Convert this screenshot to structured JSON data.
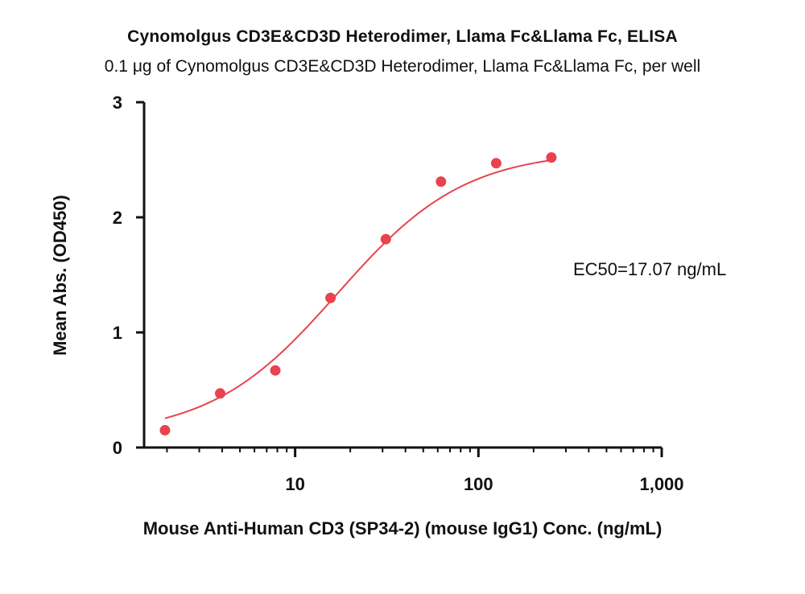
{
  "chart_data": {
    "type": "scatter",
    "title": "Cynomolgus CD3E&CD3D Heterodimer, Llama Fc&Llama Fc, ELISA",
    "subtitle": "0.1 μg of Cynomolgus CD3E&CD3D Heterodimer, Llama Fc&Llama Fc, per well",
    "xlabel": "Mouse Anti-Human CD3 (SP34-2) (mouse IgG1) Conc. (ng/mL)",
    "ylabel": "Mean Abs. (OD450)",
    "xscale": "log",
    "xlim": [
      1.5,
      1000
    ],
    "ylim": [
      0,
      3
    ],
    "x_ticks": [
      {
        "value": 10,
        "label": "10"
      },
      {
        "value": 100,
        "label": "100"
      },
      {
        "value": 1000,
        "label": "1,000"
      }
    ],
    "y_ticks": [
      {
        "value": 0,
        "label": "0"
      },
      {
        "value": 1,
        "label": "1"
      },
      {
        "value": 2,
        "label": "2"
      },
      {
        "value": 3,
        "label": "3"
      }
    ],
    "grid": false,
    "series": [
      {
        "color": "#e8434f",
        "points": [
          {
            "x": 1.95,
            "y": 0.15
          },
          {
            "x": 3.9,
            "y": 0.47
          },
          {
            "x": 7.8,
            "y": 0.67
          },
          {
            "x": 15.6,
            "y": 1.3
          },
          {
            "x": 31.25,
            "y": 1.81
          },
          {
            "x": 62.5,
            "y": 2.31
          },
          {
            "x": 125,
            "y": 2.47
          },
          {
            "x": 250,
            "y": 2.52
          }
        ],
        "fit": {
          "model": "4PL",
          "bottom": 0.1,
          "top": 2.58,
          "ec50": 17.07,
          "hill": 1.25,
          "x_range": [
            1.95,
            250
          ]
        }
      }
    ],
    "annotations": [
      {
        "text": "EC50=17.07 ng/mL",
        "placement": "right-middle"
      }
    ]
  }
}
